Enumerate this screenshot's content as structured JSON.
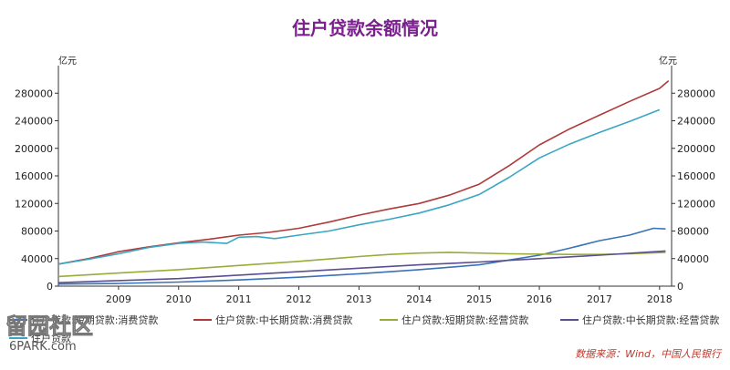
{
  "colors": {
    "title": "#7b1f8f",
    "axis": "#333333",
    "source": "#c0392b",
    "series": [
      "#3a72b8",
      "#b03a3a",
      "#9bab3a",
      "#5a4f8f",
      "#3aa6c4"
    ]
  },
  "chart_data": {
    "type": "line",
    "title": "住户贷款余额情况",
    "y_unit_left": "亿元",
    "y_unit_right": "亿元",
    "xlim": [
      2008.0,
      2018.2
    ],
    "ylim": [
      0,
      320000
    ],
    "yticks": [
      0,
      40000,
      80000,
      120000,
      160000,
      200000,
      240000,
      280000
    ],
    "xticks": [
      2009,
      2010,
      2011,
      2012,
      2013,
      2014,
      2015,
      2016,
      2017,
      2018
    ],
    "legend_position": "bottom",
    "series": [
      {
        "name": "住户贷款:短期贷款:消费贷款",
        "x": [
          2008.0,
          2009.0,
          2010.0,
          2011.0,
          2012.0,
          2013.0,
          2014.0,
          2015.0,
          2015.5,
          2016.0,
          2016.5,
          2017.0,
          2017.5,
          2017.9,
          2018.1
        ],
        "y": [
          3000,
          4000,
          6000,
          9000,
          13000,
          18000,
          24000,
          31000,
          38000,
          45000,
          55000,
          66000,
          74000,
          84000,
          83000
        ]
      },
      {
        "name": "住户贷款:中长期贷款:消费贷款",
        "x": [
          2008.0,
          2008.5,
          2009.0,
          2009.5,
          2010.0,
          2010.5,
          2011.0,
          2011.5,
          2012.0,
          2012.5,
          2013.0,
          2013.5,
          2014.0,
          2014.5,
          2015.0,
          2015.5,
          2016.0,
          2016.5,
          2017.0,
          2017.5,
          2018.0,
          2018.15
        ],
        "y": [
          32000,
          40000,
          50000,
          57000,
          63000,
          68000,
          74000,
          78000,
          84000,
          93000,
          103000,
          112000,
          120000,
          132000,
          148000,
          175000,
          205000,
          228000,
          248000,
          268000,
          287000,
          298000
        ]
      },
      {
        "name": "住户贷款:短期贷款:经营贷款",
        "x": [
          2008.0,
          2009.0,
          2010.0,
          2011.0,
          2012.0,
          2013.0,
          2013.5,
          2014.0,
          2014.5,
          2015.0,
          2015.5,
          2016.0,
          2016.5,
          2017.0,
          2017.5,
          2018.1
        ],
        "y": [
          14000,
          19000,
          24000,
          30000,
          36000,
          43000,
          46000,
          48000,
          49000,
          48000,
          47000,
          46500,
          46000,
          46000,
          47000,
          49000
        ]
      },
      {
        "name": "住户贷款:中长期贷款:经营贷款",
        "x": [
          2008.0,
          2009.0,
          2010.0,
          2011.0,
          2012.0,
          2013.0,
          2014.0,
          2015.0,
          2016.0,
          2017.0,
          2018.1
        ],
        "y": [
          5000,
          8000,
          11000,
          16000,
          21000,
          26000,
          31000,
          35000,
          40000,
          45000,
          51000
        ]
      },
      {
        "name": "住户贷款",
        "x": [
          2008.0,
          2008.5,
          2009.0,
          2009.5,
          2010.0,
          2010.4,
          2010.8,
          2011.0,
          2011.3,
          2011.6,
          2012.0,
          2012.5,
          2013.0,
          2013.5,
          2014.0,
          2014.5,
          2015.0,
          2015.5,
          2016.0,
          2016.5,
          2017.0,
          2017.5,
          2018.0
        ],
        "y": [
          32000,
          39000,
          47000,
          56000,
          62000,
          64000,
          62000,
          71000,
          72000,
          69000,
          74000,
          80000,
          89000,
          97000,
          106000,
          118000,
          133000,
          158000,
          186000,
          206000,
          223000,
          239000,
          256000
        ]
      }
    ]
  },
  "source": "数据来源：Wind，中国人民银行",
  "watermark": {
    "main": "留园社区",
    "sub": "6PARK.com"
  }
}
